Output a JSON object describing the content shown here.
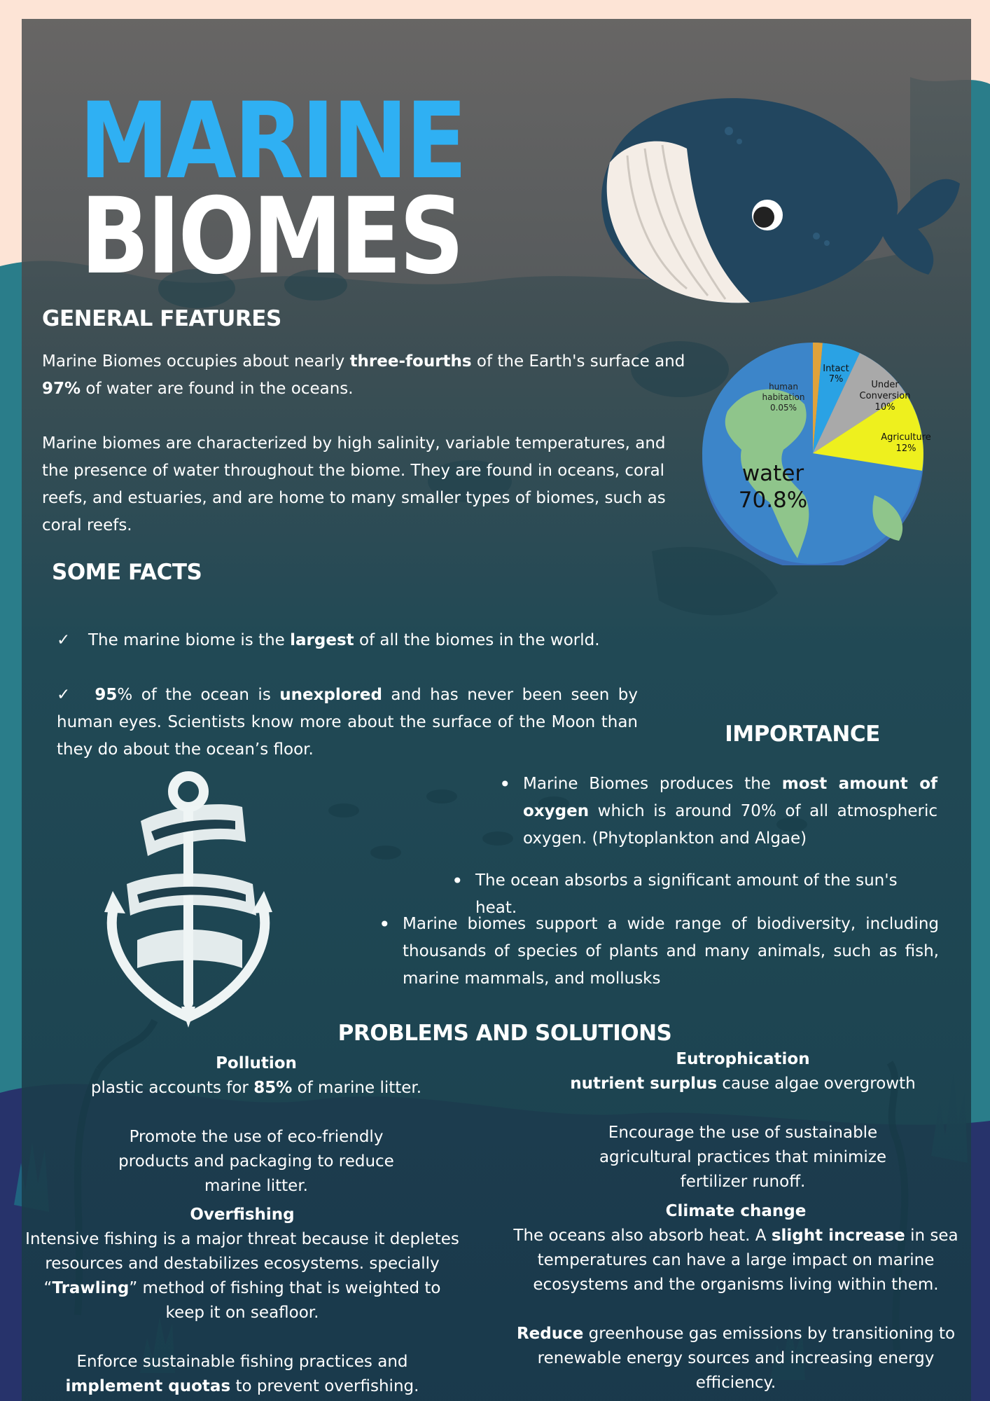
{
  "title": {
    "line1": "MARINE",
    "line2": "BIOMES"
  },
  "colors": {
    "accent": "#2fb0f3",
    "panel": "#1e3f4c",
    "peach": "#fde4d6"
  },
  "general": {
    "heading": "GENERAL FEATURES",
    "p1_a": "Marine Biomes occupies about nearly ",
    "p1_b": "three-fourths",
    "p1_c": " of the Earth's surface and ",
    "p1_d": "97%",
    "p1_e": " of water are found in the oceans.",
    "p2": "Marine biomes are characterized by high salinity, variable temperatures, and the presence of water throughout the biome. They are found in oceans, coral reefs, and estuaries, and are home to many smaller types of biomes, such as coral reefs."
  },
  "pie": {
    "water_label": "water",
    "water_value": "70.8%",
    "slices": [
      {
        "label": "human habitation",
        "value": "0.05%",
        "color": "#e0a23a"
      },
      {
        "label": "Intact",
        "value": "7%",
        "color": "#2aa2e4"
      },
      {
        "label": "Under Conversion",
        "value": "10%",
        "color": "#a9a9a9"
      },
      {
        "label": "Agriculture",
        "value": "12%",
        "color": "#eef01e"
      }
    ]
  },
  "facts": {
    "heading": "SOME FACTS",
    "check": "✓",
    "f1_a": "The marine biome is the ",
    "f1_b": "largest",
    "f1_c": " of all the biomes in the world.",
    "f2_a": "95",
    "f2_b": "% of the ocean is ",
    "f2_c": "unexplored",
    "f2_d": " and has never been seen by human eyes. Scientists know more about the surface of the Moon than they do about the ocean’s floor."
  },
  "importance": {
    "heading": "IMPORTANCE",
    "i1_a": "Marine Biomes produces the ",
    "i1_b": "most amount of oxygen",
    "i1_c": " which is around 70% of all atmospheric oxygen. (Phytoplankton and Algae)",
    "i2": "The ocean absorbs a significant amount of the sun's heat.",
    "i3": "Marine biomes support a wide range of biodiversity, including thousands of species of plants and many animals, such as fish, marine mammals, and mollusks"
  },
  "problems": {
    "heading": "PROBLEMS AND SOLUTIONS",
    "pollution": {
      "title": "Pollution",
      "p_a": "plastic accounts for ",
      "p_b": "85%",
      "p_c": " of marine litter.",
      "solution": "Promote the use of eco-friendly products and packaging to reduce marine litter."
    },
    "overfishing": {
      "title": "Overfishing",
      "p_a": "Intensive fishing is a major threat because it depletes resources and destabilizes ecosystems. specially “",
      "p_b": "Trawling",
      "p_c": "” method of fishing that is weighted to keep it on seafloor.",
      "s_a": "Enforce sustainable fishing practices and ",
      "s_b": "implement quotas",
      "s_c": " to prevent overfishing."
    },
    "eutrophication": {
      "title": "Eutrophication",
      "p_a": "nutrient surplus",
      "p_b": " cause algae overgrowth",
      "solution": "Encourage the use of sustainable agricultural practices that minimize fertilizer runoff."
    },
    "climate": {
      "title": "Climate change",
      "p_a": "The oceans also absorb heat. A ",
      "p_b": "slight increase",
      "p_c": " in sea temperatures can have a large impact on marine ecosystems and the organisms living within them.",
      "s_a": "Reduce",
      "s_b": " greenhouse gas emissions by transitioning to renewable energy sources and increasing energy efficiency."
    }
  },
  "icons": {
    "whale": "whale-illustration",
    "anchor": "anchor-illustration",
    "globe": "globe-pie-chart"
  }
}
